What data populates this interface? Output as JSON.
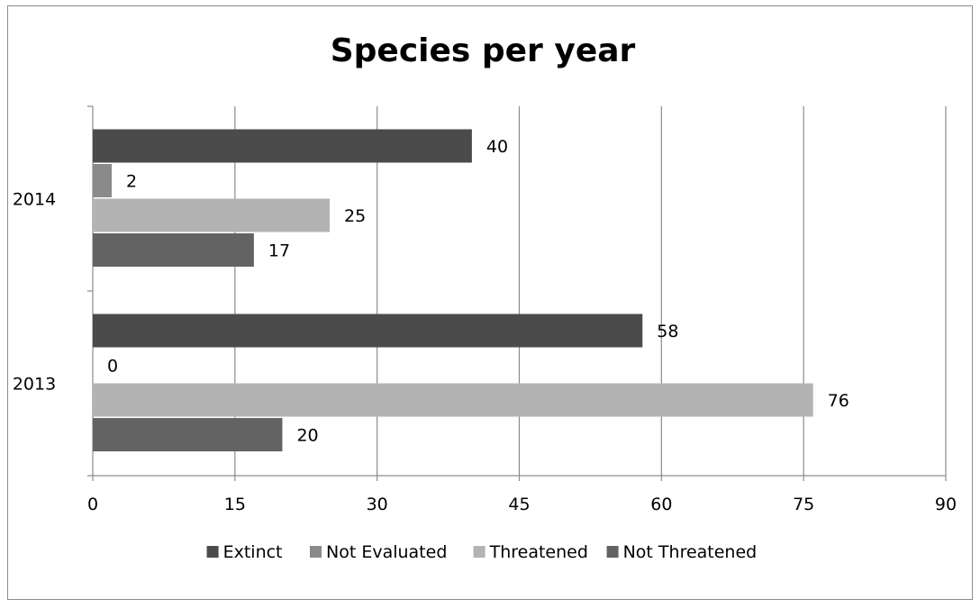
{
  "chart_data": {
    "type": "bar",
    "orientation": "horizontal",
    "title": "Species per year",
    "categories": [
      "2013",
      "2014"
    ],
    "series": [
      {
        "name": "Extinct",
        "values": [
          58,
          40
        ],
        "color": "#4b4b4b"
      },
      {
        "name": "Not Evaluated",
        "values": [
          0,
          2
        ],
        "color": "#8a8a8a"
      },
      {
        "name": "Threatened",
        "values": [
          76,
          25
        ],
        "color": "#b3b3b3"
      },
      {
        "name": "Not Threatened",
        "values": [
          20,
          17
        ],
        "color": "#636363"
      }
    ],
    "xlim": [
      0,
      90
    ],
    "xticks": [
      "0",
      "15",
      "30",
      "45",
      "60",
      "75",
      "90"
    ],
    "grid": "vertical",
    "legend": "bottom",
    "data_labels": true
  }
}
